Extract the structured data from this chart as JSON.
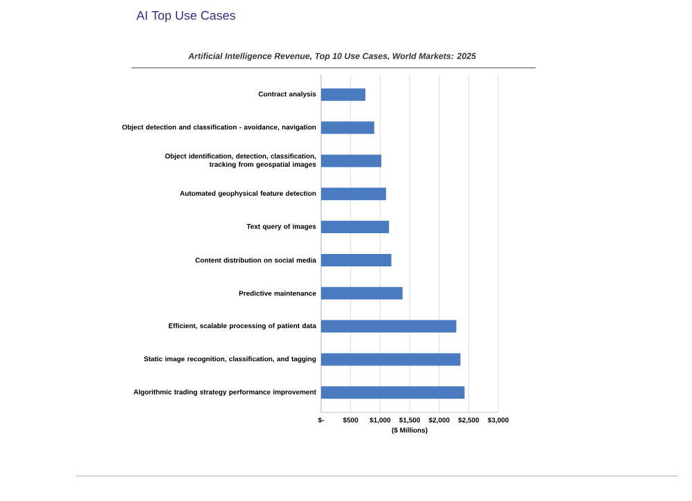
{
  "chart_data": {
    "type": "bar",
    "orientation": "horizontal",
    "title": "AI Top Use Cases",
    "subtitle": "Artificial Intelligence Revenue, Top 10 Use Cases, World Markets: 2025",
    "xlabel": "($ Millions)",
    "categories": [
      "Contract analysis",
      "Object detection and classification - avoidance, navigation",
      "Object identification, detection, classification, tracking from geospatial images",
      "Automated geophysical feature detection",
      "Text query of images",
      "Content distribution on social media",
      "Predictive maintenance",
      "Efficient, scalable processing of patient data",
      "Static image recognition, classification, and tagging",
      "Algorithmic trading strategy performance improvement"
    ],
    "values": [
      750,
      900,
      1020,
      1100,
      1150,
      1190,
      1380,
      2290,
      2360,
      2430
    ],
    "color": "#4a7bc0",
    "xlim": [
      0,
      3000
    ],
    "xticks": [
      {
        "value": 0,
        "label": "$-"
      },
      {
        "value": 500,
        "label": "$500"
      },
      {
        "value": 1000,
        "label": "$1,000"
      },
      {
        "value": 1500,
        "label": "$1,500"
      },
      {
        "value": 2000,
        "label": "$2,000"
      },
      {
        "value": 2500,
        "label": "$2,500"
      },
      {
        "value": 3000,
        "label": "$3,000"
      }
    ],
    "grid": "x"
  }
}
